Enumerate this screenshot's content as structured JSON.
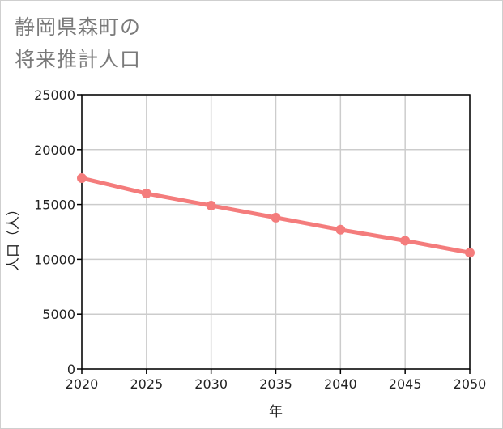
{
  "title_lines": [
    "静岡県森町の",
    "将来推計人口"
  ],
  "chart_data": {
    "type": "line",
    "title": "静岡県森町の将来推計人口",
    "xlabel": "年",
    "ylabel": "人口（人）",
    "x": [
      2020,
      2025,
      2030,
      2035,
      2040,
      2045,
      2050
    ],
    "xticks": [
      "2020",
      "2025",
      "2030",
      "2035",
      "2040",
      "2045",
      "2050"
    ],
    "yticks": [
      "0",
      "5000",
      "10000",
      "15000",
      "20000",
      "25000"
    ],
    "ylim": [
      0,
      25000
    ],
    "xlim": [
      2020,
      2050
    ],
    "grid": true,
    "series": [
      {
        "name": "人口",
        "values": [
          17400,
          16000,
          14900,
          13800,
          12700,
          11700,
          10600
        ]
      }
    ],
    "colors": {
      "line": "#f47c7c",
      "grid": "#cccccc",
      "axis": "#000000"
    }
  }
}
